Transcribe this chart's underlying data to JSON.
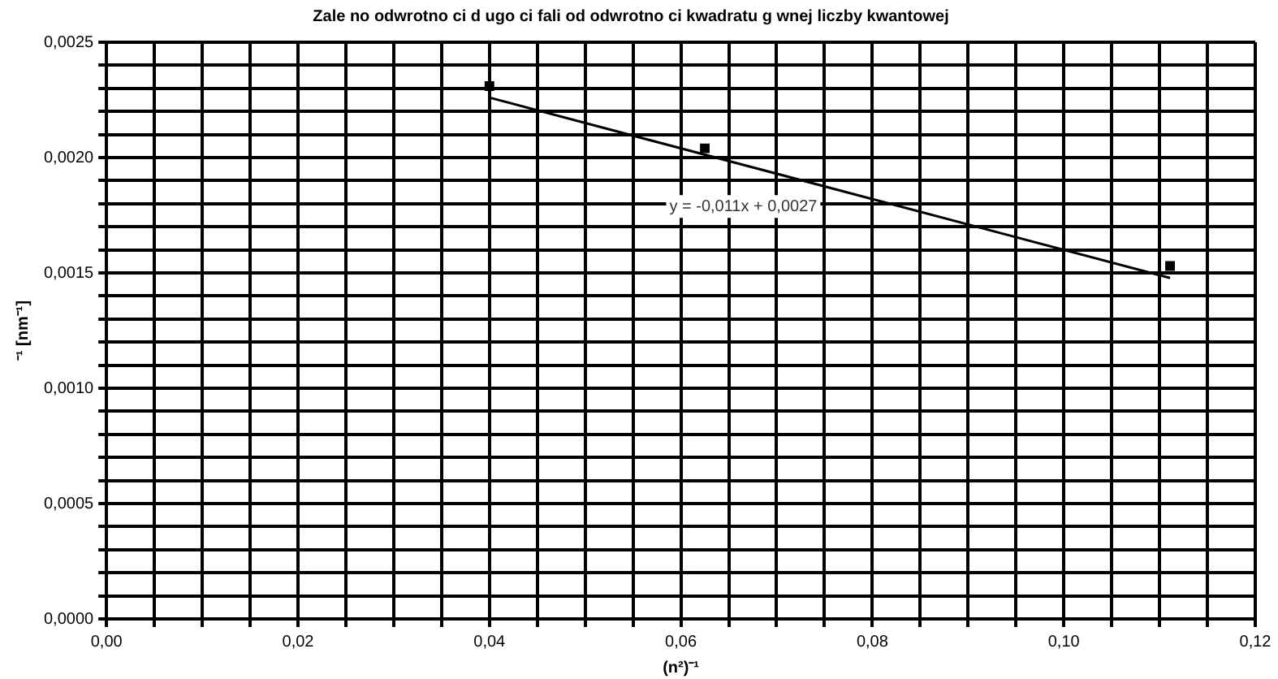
{
  "chart_data": {
    "type": "scatter",
    "title": "Zale no odwrotno ci d ugo ci fali od odwrotno ci kwadratu g wnej liczby kwantowej",
    "xlabel": "(n²)⁻¹",
    "ylabel": "⁻¹ [nm⁻¹]",
    "series": [
      {
        "type": "scatter",
        "marker": "square",
        "color": "#000000",
        "x": [
          0.04,
          0.0625,
          0.1111
        ],
        "values": [
          0.00231,
          0.00204,
          0.00153
        ]
      },
      {
        "type": "line",
        "marker": "none",
        "color": "#000000",
        "x": [
          0.04,
          0.1111
        ],
        "values": [
          0.00226,
          0.001478
        ]
      }
    ],
    "xlim": [
      0,
      0.12
    ],
    "ylim": [
      0,
      0.0025
    ],
    "xticks": [
      {
        "value": 0,
        "label": "0,00"
      },
      {
        "value": 0.005,
        "label": null
      },
      {
        "value": 0.01,
        "label": null
      },
      {
        "value": 0.015,
        "label": null
      },
      {
        "value": 0.02,
        "label": "0,02"
      },
      {
        "value": 0.025,
        "label": null
      },
      {
        "value": 0.03,
        "label": null
      },
      {
        "value": 0.035,
        "label": null
      },
      {
        "value": 0.04,
        "label": "0,04"
      },
      {
        "value": 0.045,
        "label": null
      },
      {
        "value": 0.05,
        "label": null
      },
      {
        "value": 0.055,
        "label": null
      },
      {
        "value": 0.06,
        "label": "0,06"
      },
      {
        "value": 0.065,
        "label": null
      },
      {
        "value": 0.07,
        "label": null
      },
      {
        "value": 0.075,
        "label": null
      },
      {
        "value": 0.08,
        "label": "0,08"
      },
      {
        "value": 0.085,
        "label": null
      },
      {
        "value": 0.09,
        "label": null
      },
      {
        "value": 0.095,
        "label": null
      },
      {
        "value": 0.1,
        "label": "0,10"
      },
      {
        "value": 0.105,
        "label": null
      },
      {
        "value": 0.11,
        "label": null
      },
      {
        "value": 0.115,
        "label": null
      },
      {
        "value": 0.12,
        "label": "0,12"
      }
    ],
    "yticks": [
      {
        "value": 0,
        "label": "0,0000"
      },
      {
        "value": 0.0001,
        "label": null
      },
      {
        "value": 0.0002,
        "label": null
      },
      {
        "value": 0.0003,
        "label": null
      },
      {
        "value": 0.0004,
        "label": null
      },
      {
        "value": 0.0005,
        "label": "0,0005"
      },
      {
        "value": 0.0006,
        "label": null
      },
      {
        "value": 0.0007,
        "label": null
      },
      {
        "value": 0.0008,
        "label": null
      },
      {
        "value": 0.0009,
        "label": null
      },
      {
        "value": 0.001,
        "label": "0,0010"
      },
      {
        "value": 0.0011,
        "label": null
      },
      {
        "value": 0.0012,
        "label": null
      },
      {
        "value": 0.0013,
        "label": null
      },
      {
        "value": 0.0014,
        "label": null
      },
      {
        "value": 0.0015,
        "label": "0,0015"
      },
      {
        "value": 0.0016,
        "label": null
      },
      {
        "value": 0.0017,
        "label": null
      },
      {
        "value": 0.0018,
        "label": null
      },
      {
        "value": 0.0019,
        "label": null
      },
      {
        "value": 0.002,
        "label": "0,0020"
      },
      {
        "value": 0.0021,
        "label": null
      },
      {
        "value": 0.0022,
        "label": null
      },
      {
        "value": 0.0023,
        "label": null
      },
      {
        "value": 0.0024,
        "label": null
      },
      {
        "value": 0.0025,
        "label": "0,0025"
      }
    ],
    "grid": true,
    "legend": false,
    "annotations": [
      "y = -0,011x + 0,0027"
    ]
  }
}
